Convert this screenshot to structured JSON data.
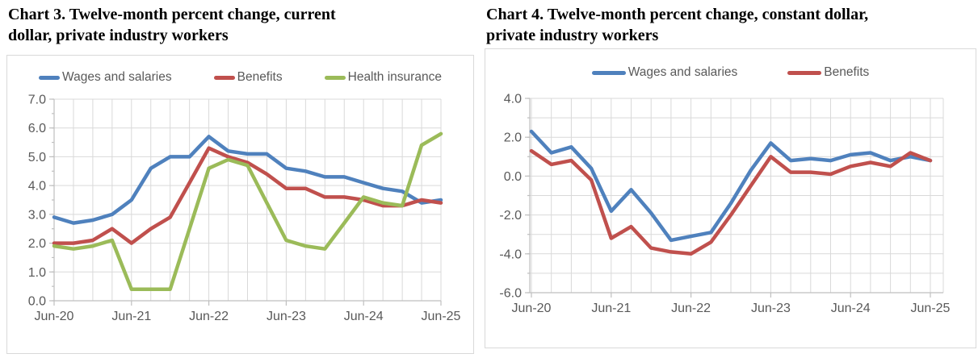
{
  "charts": [
    {
      "title_lines": [
        "Chart 3. Twelve-month percent change, current",
        "dollar, private industry workers"
      ]
    },
    {
      "title_lines": [
        "Chart 4. Twelve-month percent change, constant dollar,",
        "private industry workers"
      ]
    }
  ],
  "chart_data": [
    {
      "id": "chart3",
      "type": "line",
      "title": "Chart 3. Twelve-month percent change, current dollar, private industry workers",
      "categories": [
        "Jun-20",
        "Sep-20",
        "Dec-20",
        "Mar-21",
        "Jun-21",
        "Sep-21",
        "Dec-21",
        "Mar-22",
        "Jun-22",
        "Sep-22",
        "Dec-22",
        "Mar-23",
        "Jun-23",
        "Sep-23",
        "Dec-23",
        "Mar-24",
        "Jun-24",
        "Sep-24",
        "Dec-24",
        "Mar-25",
        "Jun-25"
      ],
      "x_ticks": {
        "indices": [
          0,
          4,
          8,
          12,
          16,
          20
        ],
        "labels": [
          "Jun-20",
          "Jun-21",
          "Jun-22",
          "Jun-23",
          "Jun-24",
          "Jun-25"
        ]
      },
      "y_ticks": {
        "values": [
          0,
          1,
          2,
          3,
          4,
          5,
          6,
          7
        ],
        "labels": [
          "0.0",
          "1.0",
          "2.0",
          "3.0",
          "4.0",
          "5.0",
          "6.0",
          "7.0"
        ]
      },
      "ylim": [
        0,
        7
      ],
      "xlabel": "",
      "ylabel": "",
      "grid": true,
      "legend_position": "top",
      "series": [
        {
          "name": "Wages and salaries",
          "color": "#4f81bd",
          "values": [
            2.9,
            2.7,
            2.8,
            3.0,
            3.5,
            4.6,
            5.0,
            5.0,
            5.7,
            5.2,
            5.1,
            5.1,
            4.6,
            4.5,
            4.3,
            4.3,
            4.1,
            3.9,
            3.8,
            3.4,
            3.5
          ]
        },
        {
          "name": "Benefits",
          "color": "#c0504d",
          "values": [
            2.0,
            2.0,
            2.1,
            2.5,
            2.0,
            2.5,
            2.9,
            4.1,
            5.3,
            5.0,
            4.8,
            4.4,
            3.9,
            3.9,
            3.6,
            3.6,
            3.5,
            3.3,
            3.3,
            3.5,
            3.4
          ]
        },
        {
          "name": "Health insurance",
          "color": "#9bbb59",
          "values": [
            1.9,
            1.8,
            1.9,
            2.1,
            0.4,
            0.4,
            0.4,
            2.5,
            4.6,
            4.9,
            4.7,
            3.4,
            2.1,
            1.9,
            1.8,
            2.7,
            3.6,
            3.4,
            3.3,
            5.4,
            5.8
          ]
        }
      ]
    },
    {
      "id": "chart4",
      "type": "line",
      "title": "Chart 4. Twelve-month percent change, constant dollar, private industry workers",
      "categories": [
        "Jun-20",
        "Sep-20",
        "Dec-20",
        "Mar-21",
        "Jun-21",
        "Sep-21",
        "Dec-21",
        "Mar-22",
        "Jun-22",
        "Sep-22",
        "Dec-22",
        "Mar-23",
        "Jun-23",
        "Sep-23",
        "Dec-23",
        "Mar-24",
        "Jun-24",
        "Sep-24",
        "Dec-24",
        "Mar-25",
        "Jun-25"
      ],
      "x_ticks": {
        "indices": [
          0,
          4,
          8,
          12,
          16,
          20
        ],
        "labels": [
          "Jun-20",
          "Jun-21",
          "Jun-22",
          "Jun-23",
          "Jun-24",
          "Jun-25"
        ]
      },
      "y_ticks": {
        "values": [
          -6,
          -4,
          -2,
          0,
          2,
          4
        ],
        "labels": [
          "-6.0",
          "-4.0",
          "-2.0",
          "0.0",
          "2.0",
          "4.0"
        ]
      },
      "ylim": [
        -6,
        4
      ],
      "xlabel": "",
      "ylabel": "",
      "grid": true,
      "legend_position": "top",
      "series": [
        {
          "name": "Wages and salaries",
          "color": "#4f81bd",
          "values": [
            2.3,
            1.2,
            1.5,
            0.4,
            -1.8,
            -0.7,
            -1.9,
            -3.3,
            -3.1,
            -2.9,
            -1.4,
            0.3,
            1.7,
            0.8,
            0.9,
            0.8,
            1.1,
            1.2,
            0.8,
            1.0,
            0.8
          ]
        },
        {
          "name": "Benefits",
          "color": "#c0504d",
          "values": [
            1.3,
            0.6,
            0.8,
            -0.2,
            -3.2,
            -2.6,
            -3.7,
            -3.9,
            -4.0,
            -3.4,
            -2.0,
            -0.5,
            1.0,
            0.2,
            0.2,
            0.1,
            0.5,
            0.7,
            0.5,
            1.2,
            0.8
          ]
        }
      ]
    }
  ],
  "colors": {
    "grid": "#d9d9d9",
    "axis": "#bfbfbf",
    "tick_text": "#595959",
    "title_text": "#000000",
    "panel_border": "#d9d9d9"
  }
}
